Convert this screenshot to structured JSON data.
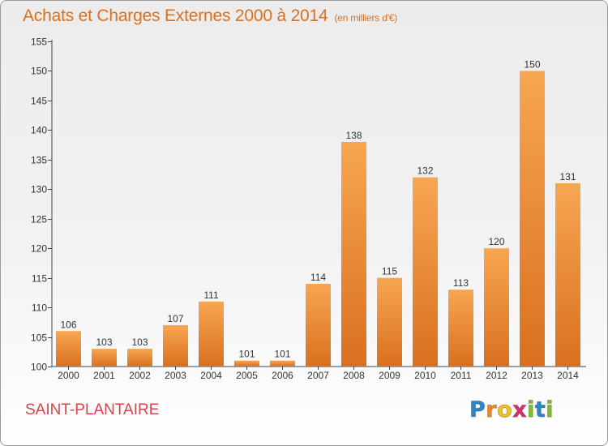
{
  "chart_data": {
    "type": "bar",
    "title": "Achats et Charges Externes 2000 à 2014",
    "subtitle": "(en milliers d'€)",
    "categories": [
      "2000",
      "2001",
      "2002",
      "2003",
      "2004",
      "2005",
      "2006",
      "2007",
      "2008",
      "2009",
      "2010",
      "2011",
      "2012",
      "2013",
      "2014"
    ],
    "values": [
      106,
      103,
      103,
      107,
      111,
      101,
      101,
      114,
      138,
      115,
      132,
      113,
      120,
      150,
      131
    ],
    "ylim": [
      100,
      155
    ],
    "yticks": [
      100,
      105,
      110,
      115,
      120,
      125,
      130,
      135,
      140,
      145,
      150,
      155
    ],
    "xlabel": "",
    "ylabel": "",
    "grid": false,
    "bar_color_light": "#f7a652",
    "bar_color_dark": "#d9701f"
  },
  "commune_name": "SAINT-PLANTAIRE",
  "logo": {
    "letters": [
      "P",
      "r",
      "o",
      "x",
      "i",
      "t",
      "i"
    ],
    "colors": [
      "#2e86c9",
      "#f28a1e",
      "#f2c21e",
      "#d6336c",
      "#7cbf2c",
      "#2e86c9",
      "#7cbf2c"
    ]
  }
}
